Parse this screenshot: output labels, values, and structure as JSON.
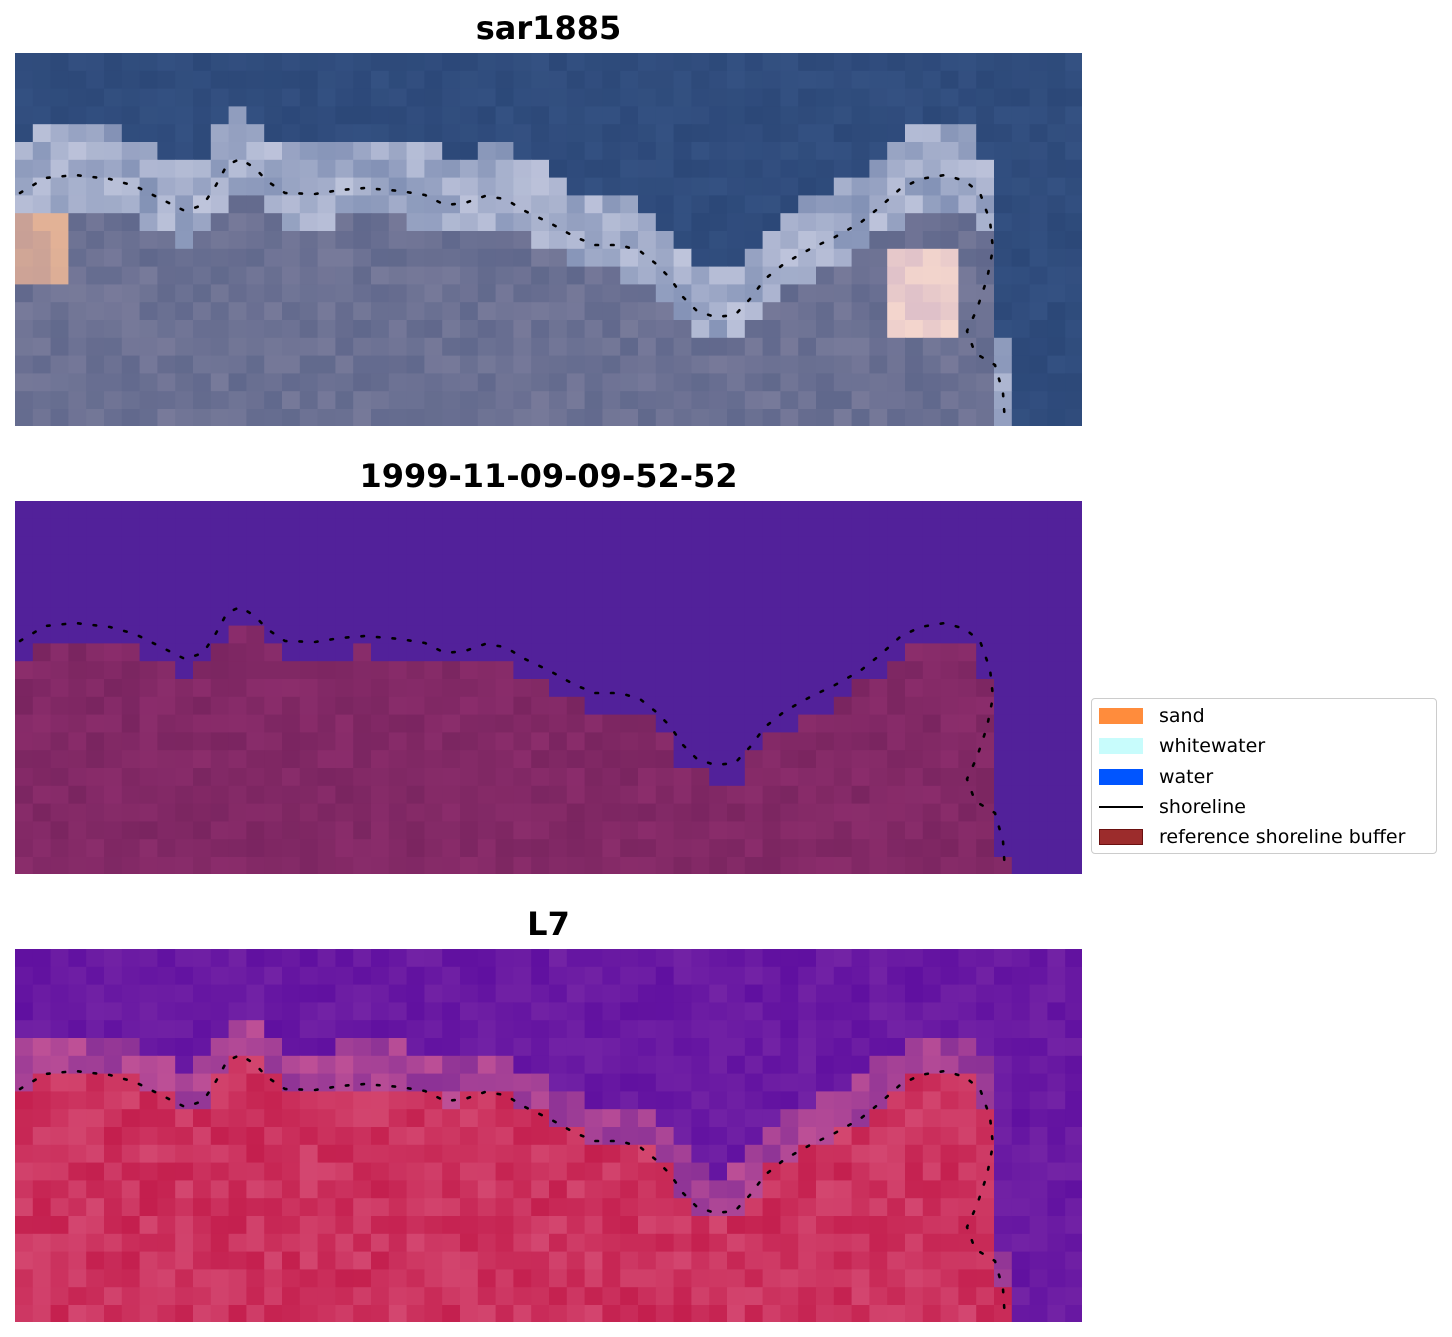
{
  "panels": [
    {
      "title": "sar1885"
    },
    {
      "title": "1999-11-09-09-52-52"
    },
    {
      "title": "L7"
    }
  ],
  "legend": {
    "items": [
      {
        "label": "sand",
        "color": "#ff8c3c",
        "kind": "patch"
      },
      {
        "label": "whitewater",
        "color": "#c8fcfc",
        "kind": "patch"
      },
      {
        "label": "water",
        "color": "#0055ff",
        "kind": "patch"
      },
      {
        "label": "shoreline",
        "color": "#000000",
        "kind": "line"
      },
      {
        "label": "reference shoreline buffer",
        "color": "#9c2c2c",
        "kind": "patch"
      }
    ]
  },
  "colors": {
    "rgb_sky": "#2c4878",
    "classified_water": "#52219a",
    "classified_land": "#7a2560",
    "ndwi_water": "#6a16a0",
    "ndwi_land": "#c41f4e"
  }
}
